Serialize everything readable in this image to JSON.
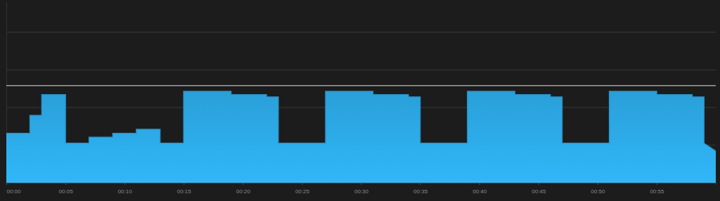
{
  "chart_data": {
    "type": "area",
    "x": [
      0,
      2,
      2,
      3,
      3,
      5,
      5,
      7,
      7,
      9,
      9,
      11,
      11,
      13,
      13,
      15,
      15,
      19,
      19,
      22,
      22,
      23,
      23,
      27,
      27,
      31,
      31,
      34,
      34,
      35,
      35,
      39,
      39,
      43,
      43,
      46,
      46,
      47,
      47,
      51,
      51,
      55,
      55,
      58,
      58,
      59,
      59,
      60
    ],
    "values": [
      131,
      131,
      179,
      179,
      234,
      234,
      105,
      105,
      121,
      121,
      131,
      131,
      142,
      142,
      105,
      105,
      243,
      243,
      234,
      234,
      228,
      228,
      105,
      105,
      243,
      243,
      234,
      234,
      228,
      228,
      105,
      105,
      243,
      243,
      234,
      234,
      228,
      228,
      105,
      105,
      243,
      243,
      234,
      234,
      228,
      228,
      105,
      84
    ],
    "color": "#2a9fd8",
    "xlim": [
      0,
      60
    ],
    "xticks": [
      {
        "value": 0,
        "label": "00:00"
      },
      {
        "value": 5,
        "label": "00:05"
      },
      {
        "value": 10,
        "label": "00:10"
      },
      {
        "value": 15,
        "label": "00:15"
      },
      {
        "value": 20,
        "label": "00:20"
      },
      {
        "value": 25,
        "label": "00:25"
      },
      {
        "value": 30,
        "label": "00:30"
      },
      {
        "value": 35,
        "label": "00:35"
      },
      {
        "value": 40,
        "label": "00:40"
      },
      {
        "value": 45,
        "label": "00:45"
      },
      {
        "value": 50,
        "label": "00:50"
      },
      {
        "value": 55,
        "label": "00:55"
      }
    ],
    "ylim": [
      0,
      480
    ],
    "yticks": [
      100,
      200,
      300,
      400
    ],
    "threshold": 258,
    "grid": true,
    "tick_labels": "x"
  }
}
